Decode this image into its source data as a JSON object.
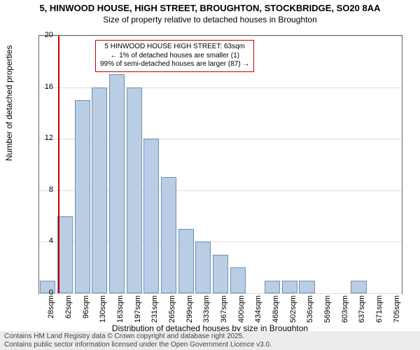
{
  "title": {
    "main": "5, HINWOOD HOUSE, HIGH STREET, BROUGHTON, STOCKBRIDGE, SO20 8AA",
    "sub": "Size of property relative to detached houses in Broughton"
  },
  "chart": {
    "type": "histogram",
    "ylabel": "Number of detached properties",
    "xlabel": "Distribution of detached houses by size in Broughton",
    "ymax": 20,
    "ytick_step": 4,
    "bar_fill": "#b9cde5",
    "bar_stroke": "#6f8fb5",
    "grid_color": "#dddddd",
    "border_color": "#666666",
    "background": "#ffffff",
    "categories": [
      "28sqm",
      "62sqm",
      "96sqm",
      "130sqm",
      "163sqm",
      "197sqm",
      "231sqm",
      "265sqm",
      "299sqm",
      "333sqm",
      "367sqm",
      "400sqm",
      "434sqm",
      "468sqm",
      "502sqm",
      "536sqm",
      "569sqm",
      "603sqm",
      "637sqm",
      "671sqm",
      "705sqm"
    ],
    "values": [
      1,
      6,
      15,
      16,
      17,
      16,
      12,
      9,
      5,
      4,
      3,
      2,
      0,
      1,
      1,
      1,
      0,
      0,
      1,
      0,
      0
    ],
    "marker": {
      "category_index": 1,
      "offset_within": 0.08,
      "color": "#c00000"
    },
    "tooltip": {
      "lines": [
        "5 HINWOOD HOUSE HIGH STREET: 63sqm",
        "← 1% of detached houses are smaller (1)",
        "99% of semi-detached houses are larger (87) →"
      ],
      "border_color": "#c00000",
      "fontsize": 10
    },
    "title_fontsize": 13,
    "label_fontsize": 12,
    "tick_fontsize": 11
  },
  "footer": {
    "line1": "Contains HM Land Registry data © Crown copyright and database right 2025.",
    "line2": "Contains public sector information licensed under the Open Government Licence v3.0.",
    "background": "#ececec",
    "fontsize": 10
  }
}
